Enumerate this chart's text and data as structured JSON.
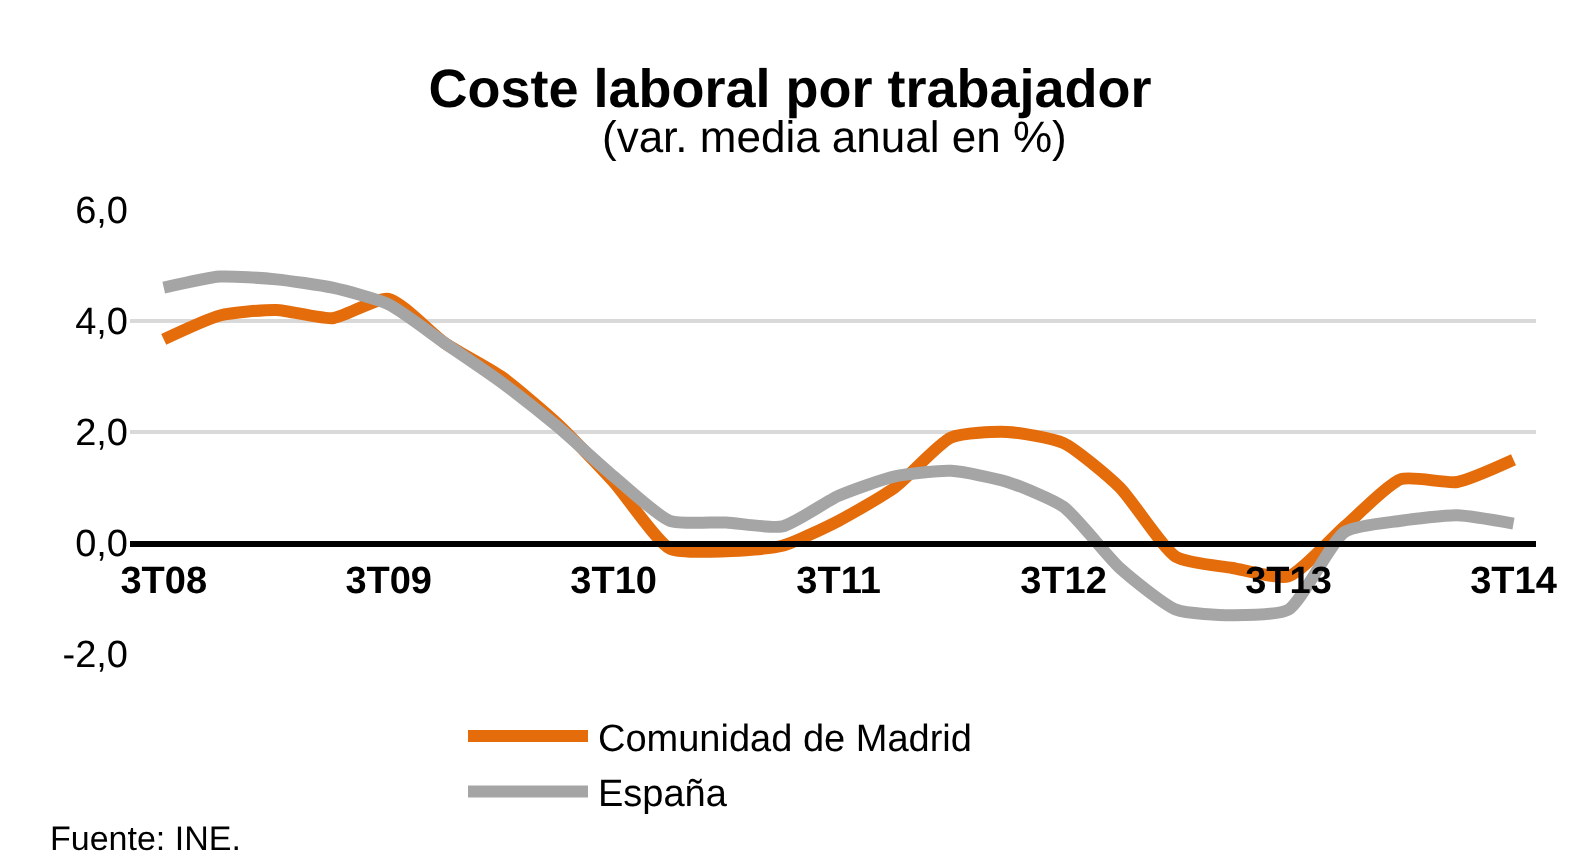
{
  "chart_data": {
    "type": "line",
    "title": "Coste laboral por trabajador",
    "subtitle": "(var. media anual en %)",
    "categories": [
      "3T08",
      null,
      null,
      null,
      "3T09",
      null,
      null,
      null,
      "3T10",
      null,
      null,
      null,
      "3T11",
      null,
      null,
      null,
      "3T12",
      null,
      null,
      null,
      "3T13",
      null,
      null,
      null,
      "3T14"
    ],
    "series": [
      {
        "name": "Comunidad de Madrid",
        "color": "#e46c0a",
        "values": [
          3.67,
          4.1,
          4.2,
          4.05,
          4.4,
          3.6,
          3.0,
          2.15,
          1.1,
          -0.1,
          -0.15,
          -0.05,
          0.4,
          1.0,
          1.9,
          2.0,
          1.8,
          1.0,
          -0.25,
          -0.45,
          -0.6,
          0.3,
          1.15,
          1.1,
          1.5
        ]
      },
      {
        "name": "España",
        "color": "#a5a5a5",
        "values": [
          4.6,
          4.8,
          4.75,
          4.6,
          4.3,
          3.6,
          2.9,
          2.1,
          1.2,
          0.4,
          0.37,
          0.3,
          0.85,
          1.2,
          1.3,
          1.1,
          0.65,
          -0.45,
          -1.2,
          -1.3,
          -1.2,
          0.2,
          0.4,
          0.5,
          0.35
        ]
      }
    ],
    "ylim": [
      -2,
      6
    ],
    "yticks": [
      {
        "value": -2,
        "label": "-2,0"
      },
      {
        "value": 0,
        "label": "0,0"
      },
      {
        "value": 2,
        "label": "2,0"
      },
      {
        "value": 4,
        "label": "4,0"
      },
      {
        "value": 6,
        "label": "6,0"
      }
    ],
    "grid": "y",
    "legend": "bottom",
    "marker": "none",
    "line_style": "solid",
    "annotations": [
      "Fuente: INE."
    ]
  }
}
